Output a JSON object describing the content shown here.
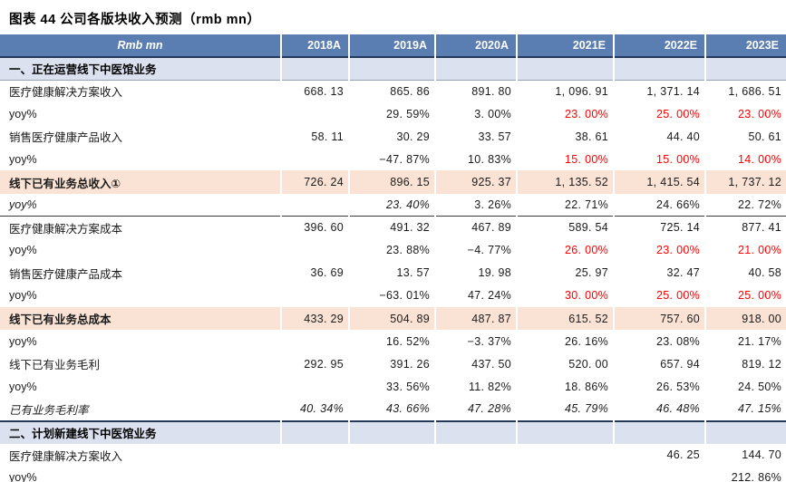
{
  "title": "图表 44 公司各版块收入预测（rmb mn）",
  "colors": {
    "header_bg": "#5B7EB2",
    "section_bg": "#DCE1F0",
    "highlight_bg": "#FAE3D5",
    "border_dark": "#25395B",
    "accent_red": "#FF0000"
  },
  "table": {
    "header": {
      "unit": "Rmb mn",
      "years": [
        "2018A",
        "2019A",
        "2020A",
        "2021E",
        "2022E",
        "2023E"
      ]
    },
    "rows": [
      {
        "type": "section",
        "underline": true,
        "label": "一、正在运营线下中医馆业务"
      },
      {
        "label": "医疗健康解决方案收入",
        "values": [
          "668. 13",
          "865. 86",
          "891. 80",
          "1, 096. 91",
          "1, 371. 14",
          "1, 686. 51"
        ]
      },
      {
        "label": "yoy%",
        "values": [
          "",
          "29. 59%",
          "3. 00%",
          {
            "t": "23. 00%",
            "red": true
          },
          {
            "t": "25. 00%",
            "red": true
          },
          {
            "t": "23. 00%",
            "red": true
          }
        ]
      },
      {
        "label": "销售医疗健康产品收入",
        "values": [
          "58. 11",
          "30. 29",
          "33. 57",
          "38. 61",
          "44. 40",
          "50. 61"
        ]
      },
      {
        "label": "yoy%",
        "values": [
          "",
          "−47. 87%",
          "10. 83%",
          {
            "t": "15. 00%",
            "red": true
          },
          {
            "t": "15. 00%",
            "red": true
          },
          {
            "t": "14. 00%",
            "red": true
          }
        ]
      },
      {
        "label": "线下已有业务总收入①",
        "bold": true,
        "peach": true,
        "values": [
          "726. 24",
          "896. 15",
          "925. 37",
          "1, 135. 52",
          "1, 415. 54",
          "1, 737. 12"
        ]
      },
      {
        "label": "yoy%",
        "label_italic": true,
        "divider": true,
        "values": [
          "",
          {
            "t": "23. 40%",
            "italic": true
          },
          "3. 26%",
          "22. 71%",
          "24. 66%",
          "22. 72%"
        ]
      },
      {
        "label": "医疗健康解决方案成本",
        "values": [
          "396. 60",
          "491. 32",
          "467. 89",
          "589. 54",
          "725. 14",
          "877. 41"
        ]
      },
      {
        "label": "yoy%",
        "values": [
          "",
          "23. 88%",
          "−4. 77%",
          {
            "t": "26. 00%",
            "red": true
          },
          {
            "t": "23. 00%",
            "red": true
          },
          {
            "t": "21. 00%",
            "red": true
          }
        ]
      },
      {
        "label": "销售医疗健康产品成本",
        "values": [
          "36. 69",
          "13. 57",
          "19. 98",
          "25. 97",
          "32. 47",
          "40. 58"
        ]
      },
      {
        "label": "yoy%",
        "values": [
          "",
          "−63. 01%",
          "47. 24%",
          {
            "t": "30. 00%",
            "red": true
          },
          {
            "t": "25. 00%",
            "red": true
          },
          {
            "t": "25. 00%",
            "red": true
          }
        ]
      },
      {
        "label": "线下已有业务总成本",
        "bold": true,
        "peach": true,
        "values": [
          "433. 29",
          "504. 89",
          "487. 87",
          "615. 52",
          "757. 60",
          "918. 00"
        ]
      },
      {
        "label": "yoy%",
        "values": [
          "",
          "16. 52%",
          "−3. 37%",
          "26. 16%",
          "23. 08%",
          "21. 17%"
        ]
      },
      {
        "label": "线下已有业务毛利",
        "values": [
          "292. 95",
          "391. 26",
          "437. 50",
          "520. 00",
          "657. 94",
          "819. 12"
        ]
      },
      {
        "label": "yoy%",
        "values": [
          "",
          "33. 56%",
          "11. 82%",
          "18. 86%",
          "26. 53%",
          "24. 50%"
        ]
      },
      {
        "label": "已有业务毛利率",
        "italic": true,
        "divider": true,
        "values": [
          "40. 34%",
          "43. 66%",
          "47. 28%",
          "45. 79%",
          "46. 48%",
          "47. 15%"
        ]
      },
      {
        "type": "section",
        "label": "二、计划新建线下中医馆业务"
      },
      {
        "label": "医疗健康解决方案收入",
        "values": [
          "",
          "",
          "",
          "",
          "46. 25",
          "144. 70"
        ]
      },
      {
        "label": "yoy%",
        "values": [
          "",
          "",
          "",
          "",
          "",
          "212. 86%"
        ]
      }
    ]
  }
}
